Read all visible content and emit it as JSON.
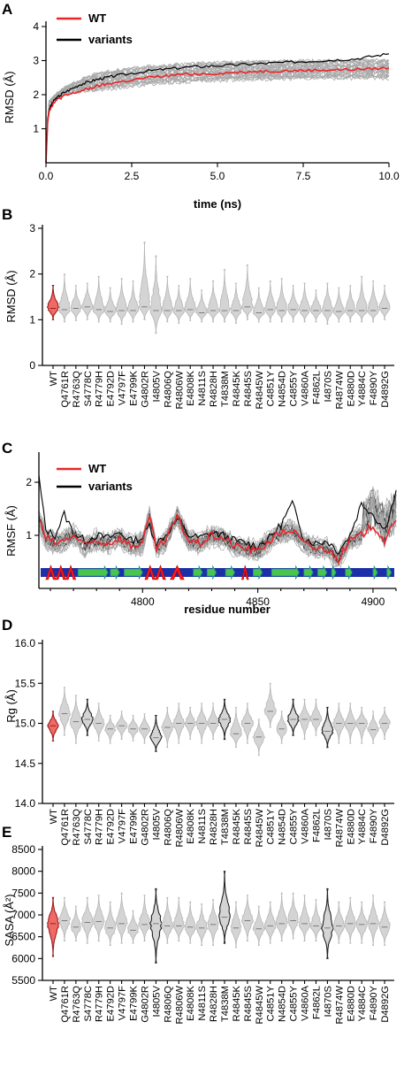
{
  "categories": [
    "WT",
    "Q4761R",
    "R4763Q",
    "S4778C",
    "R4779H",
    "E4792D",
    "V4797F",
    "E4799K",
    "G4802R",
    "I4805V",
    "R4806Q",
    "R4806W",
    "E4808K",
    "N4811S",
    "R4828H",
    "T4838M",
    "R4845K",
    "R4845S",
    "R4845W",
    "C4851Y",
    "N4854D",
    "C4855Y",
    "V4860A",
    "F4862L",
    "I4870S",
    "R4874W",
    "E4880D",
    "Y4884C",
    "F4890Y",
    "D4892G"
  ],
  "chart_data": [
    {
      "panel": "A",
      "type": "line",
      "xlabel": "time (ns)",
      "ylabel": "RMSD (Å)",
      "xlim": [
        0,
        10
      ],
      "ylim": [
        0,
        4
      ],
      "xticks": [
        "0.0",
        "2.5",
        "5.0",
        "7.5",
        "10.0"
      ],
      "yticks": [
        "1",
        "2",
        "3",
        "4"
      ],
      "legend": [
        "WT",
        "variants"
      ],
      "series": [
        {
          "name": "WT",
          "color": "#e8262b",
          "x": [
            0,
            0.05,
            0.1,
            0.25,
            0.5,
            1,
            1.5,
            2,
            3,
            4,
            5,
            6,
            7,
            8,
            9,
            10
          ],
          "values": [
            0,
            1.2,
            1.55,
            1.8,
            1.95,
            2.1,
            2.25,
            2.35,
            2.5,
            2.6,
            2.62,
            2.68,
            2.7,
            2.72,
            2.74,
            2.78
          ]
        },
        {
          "name": "variants",
          "color": "#000000",
          "x": [
            0,
            0.05,
            0.1,
            0.25,
            0.5,
            1,
            1.5,
            2,
            3,
            4,
            5,
            6,
            7,
            8,
            9,
            10
          ],
          "values": [
            0,
            1.3,
            1.6,
            1.85,
            2.05,
            2.3,
            2.45,
            2.55,
            2.7,
            2.8,
            2.85,
            2.9,
            2.95,
            3.0,
            3.05,
            3.2
          ]
        }
      ]
    },
    {
      "panel": "B",
      "type": "violin",
      "ylabel": "RMSD (Å)",
      "ylim": [
        0,
        3
      ],
      "yticks": [
        "0",
        "1",
        "2",
        "3"
      ],
      "medians": [
        1.25,
        1.22,
        1.25,
        1.28,
        1.22,
        1.18,
        1.2,
        1.2,
        1.28,
        1.2,
        1.2,
        1.2,
        1.22,
        1.15,
        1.2,
        1.2,
        1.2,
        1.28,
        1.15,
        1.22,
        1.2,
        1.22,
        1.2,
        1.2,
        1.2,
        1.18,
        1.2,
        1.2,
        1.2,
        1.25
      ],
      "mins": [
        1.0,
        0.95,
        0.98,
        1.0,
        0.95,
        0.95,
        0.9,
        0.95,
        1.0,
        0.7,
        0.95,
        0.92,
        0.98,
        0.95,
        0.95,
        0.95,
        0.92,
        1.0,
        0.95,
        0.95,
        0.95,
        0.95,
        0.95,
        0.95,
        0.9,
        0.95,
        0.95,
        0.95,
        0.95,
        1.0
      ],
      "maxs": [
        1.75,
        2.0,
        1.75,
        1.8,
        1.95,
        1.7,
        1.9,
        1.85,
        2.7,
        2.4,
        1.95,
        1.75,
        1.9,
        1.65,
        1.85,
        2.1,
        1.8,
        2.2,
        1.7,
        1.85,
        1.9,
        1.75,
        1.8,
        1.65,
        1.8,
        1.7,
        1.75,
        1.95,
        1.85,
        1.75
      ]
    },
    {
      "panel": "C",
      "type": "line",
      "xlabel": "residue number",
      "ylabel": "RMSF (Å)",
      "xlim": [
        4755,
        4910
      ],
      "ylim": [
        0,
        2.5
      ],
      "xticks": [
        "4800",
        "4850",
        "4900"
      ],
      "yticks": [
        "1",
        "2"
      ],
      "legend": [
        "WT",
        "variants"
      ],
      "series": [
        {
          "name": "WT",
          "color": "#e8262b",
          "x": [
            4755,
            4758,
            4762,
            4766,
            4770,
            4775,
            4780,
            4785,
            4790,
            4795,
            4800,
            4803,
            4806,
            4810,
            4815,
            4820,
            4825,
            4830,
            4835,
            4840,
            4845,
            4850,
            4855,
            4860,
            4865,
            4870,
            4875,
            4880,
            4885,
            4890,
            4895,
            4900,
            4905,
            4910
          ],
          "values": [
            1.3,
            0.95,
            0.85,
            0.9,
            1.0,
            0.8,
            0.9,
            0.85,
            0.95,
            0.8,
            0.85,
            1.35,
            0.75,
            0.9,
            1.35,
            0.9,
            0.85,
            1.0,
            0.95,
            0.8,
            0.75,
            0.7,
            0.9,
            1.05,
            1.1,
            0.85,
            0.75,
            0.75,
            0.55,
            0.9,
            1.0,
            1.2,
            0.9,
            1.25
          ]
        },
        {
          "name": "variants",
          "color": "#000000",
          "x": [
            4755,
            4758,
            4762,
            4766,
            4770,
            4775,
            4780,
            4785,
            4790,
            4795,
            4800,
            4803,
            4806,
            4810,
            4815,
            4820,
            4825,
            4830,
            4835,
            4840,
            4845,
            4850,
            4855,
            4860,
            4865,
            4870,
            4875,
            4880,
            4885,
            4890,
            4895,
            4900,
            4905,
            4910
          ],
          "values": [
            2.1,
            1.1,
            1.0,
            1.4,
            1.05,
            0.9,
            1.0,
            0.95,
            1.05,
            0.9,
            0.95,
            1.2,
            0.85,
            1.0,
            1.3,
            1.0,
            0.95,
            1.05,
            1.0,
            0.9,
            0.85,
            0.8,
            0.95,
            1.2,
            1.6,
            0.95,
            0.85,
            0.9,
            0.7,
            1.0,
            1.6,
            1.4,
            1.1,
            1.8
          ]
        }
      ],
      "secondary_structure": [
        {
          "kind": "helix",
          "start": 4758,
          "end": 4771
        },
        {
          "kind": "strand",
          "start": 4772,
          "end": 4785
        },
        {
          "kind": "strand",
          "start": 4786,
          "end": 4790
        },
        {
          "kind": "strand",
          "start": 4792,
          "end": 4800
        },
        {
          "kind": "helix",
          "start": 4801,
          "end": 4810
        },
        {
          "kind": "helix",
          "start": 4812,
          "end": 4818
        },
        {
          "kind": "strand",
          "start": 4822,
          "end": 4826
        },
        {
          "kind": "strand",
          "start": 4828,
          "end": 4832
        },
        {
          "kind": "strand",
          "start": 4836,
          "end": 4840
        },
        {
          "kind": "helix",
          "start": 4843,
          "end": 4846
        },
        {
          "kind": "strand",
          "start": 4848,
          "end": 4852
        },
        {
          "kind": "strand",
          "start": 4856,
          "end": 4868
        },
        {
          "kind": "strand",
          "start": 4870,
          "end": 4874
        },
        {
          "kind": "strand",
          "start": 4876,
          "end": 4880
        },
        {
          "kind": "strand",
          "start": 4882,
          "end": 4884
        },
        {
          "kind": "strand",
          "start": 4888,
          "end": 4891
        },
        {
          "kind": "strand",
          "start": 4900,
          "end": 4902
        },
        {
          "kind": "strand",
          "start": 4906,
          "end": 4908
        }
      ]
    },
    {
      "panel": "D",
      "type": "violin",
      "ylabel": "Rg (Å)",
      "ylim": [
        14.0,
        16.0
      ],
      "yticks": [
        "14.0",
        "14.5",
        "15.0",
        "15.5",
        "16.0"
      ],
      "medians": [
        14.97,
        15.12,
        15.02,
        15.05,
        15.0,
        14.93,
        14.97,
        14.93,
        14.93,
        14.82,
        14.95,
        15.0,
        15.0,
        15.0,
        15.0,
        15.05,
        14.87,
        15.0,
        14.83,
        15.15,
        14.93,
        15.05,
        15.05,
        15.05,
        14.9,
        15.0,
        15.0,
        15.0,
        14.92,
        15.0
      ],
      "mins": [
        14.78,
        14.85,
        14.75,
        14.85,
        14.78,
        14.75,
        14.8,
        14.78,
        14.75,
        14.65,
        14.7,
        14.75,
        14.8,
        14.75,
        14.8,
        14.8,
        14.7,
        14.75,
        14.6,
        14.95,
        14.75,
        14.85,
        14.8,
        14.85,
        14.7,
        14.75,
        14.75,
        14.75,
        14.75,
        14.8
      ],
      "maxs": [
        15.15,
        15.45,
        15.35,
        15.3,
        15.25,
        15.1,
        15.15,
        15.1,
        15.12,
        15.1,
        15.2,
        15.25,
        15.2,
        15.25,
        15.25,
        15.3,
        15.2,
        15.25,
        15.05,
        15.5,
        15.15,
        15.3,
        15.3,
        15.3,
        15.2,
        15.25,
        15.25,
        15.2,
        15.15,
        15.2
      ]
    },
    {
      "panel": "E",
      "type": "violin",
      "ylabel": "SASA (Å²)",
      "ylim": [
        5500,
        8500
      ],
      "yticks": [
        "5500",
        "6000",
        "6500",
        "7000",
        "7500",
        "8000",
        "8500"
      ],
      "medians": [
        6800,
        6870,
        6720,
        6830,
        6850,
        6700,
        6800,
        6650,
        6780,
        6800,
        6750,
        6750,
        6720,
        6700,
        6780,
        6950,
        6700,
        6870,
        6680,
        6750,
        6800,
        6870,
        6800,
        6750,
        6700,
        6750,
        6800,
        6780,
        6800,
        6720
      ],
      "mins": [
        6050,
        6400,
        6400,
        6350,
        6400,
        6300,
        6350,
        6350,
        6400,
        5900,
        6350,
        6400,
        6350,
        6300,
        6300,
        6350,
        6250,
        6400,
        6300,
        6350,
        6400,
        6450,
        6400,
        6400,
        6000,
        6350,
        6350,
        6350,
        6300,
        6300
      ],
      "maxs": [
        7400,
        7400,
        7200,
        7400,
        7450,
        7300,
        7500,
        7100,
        7450,
        7600,
        7400,
        7400,
        7300,
        7250,
        7350,
        8000,
        7300,
        7450,
        7200,
        7300,
        7500,
        7500,
        7450,
        7350,
        7600,
        7300,
        7400,
        7300,
        7450,
        7300
      ]
    }
  ],
  "legend": {
    "wt": "WT",
    "variants": "variants"
  },
  "panel_labels": [
    "A",
    "B",
    "C",
    "D",
    "E"
  ],
  "palette": {
    "wt": "#e8262b",
    "variants": "#000000",
    "variant_gray": "#a8a8a8",
    "violin_fill": "#d4d4d4",
    "helix": "#ff1a1a",
    "strand": "#49c44f",
    "strand_edge": "#1a8a8a",
    "coil": "#1d2fa8"
  }
}
